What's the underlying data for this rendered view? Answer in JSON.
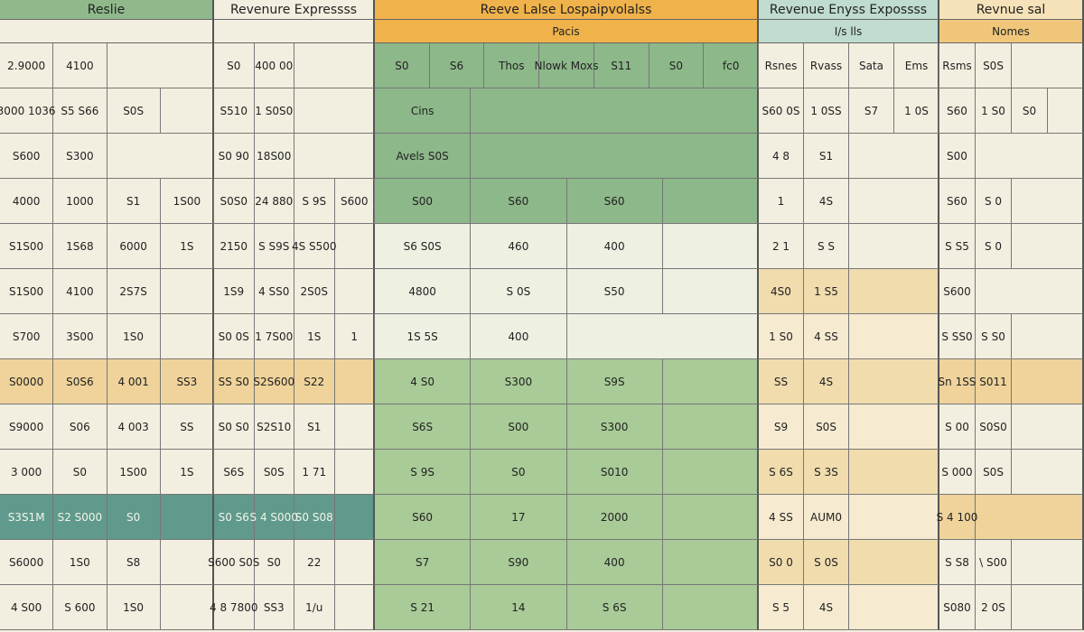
{
  "panels": [
    {
      "title": "Reslie",
      "rows": [
        [
          "2.9000",
          "4100"
        ],
        [
          "3000 1036",
          "S5 S66",
          "S0S"
        ],
        [
          "S600",
          "S300"
        ],
        [
          "4000",
          "1000",
          "S1",
          "1S00"
        ],
        [
          "S1S00",
          "1S68",
          "6000",
          "1S"
        ],
        [
          "S1S00",
          "4100",
          "2S7S"
        ],
        [
          "S700",
          "3S00",
          "1S0"
        ],
        [
          "S0000",
          "S0S6",
          "4 001",
          "SS3"
        ],
        [
          "S9000",
          "S06",
          "4 003",
          "SS"
        ],
        [
          "3 000",
          "S0",
          "1S00",
          "1S"
        ],
        [
          "S3S1M",
          "S2 S000",
          "S0"
        ],
        [
          "S6000",
          "1S0",
          "S8"
        ],
        [
          "4 S00",
          "S 600",
          "1S0"
        ]
      ]
    },
    {
      "title": "Revenure Expressss",
      "rows": [
        [
          "S0",
          "400 00"
        ],
        [
          "S510",
          "1 S0S0"
        ],
        [
          "S0 90",
          "18S00"
        ],
        [
          "S0S0",
          "24 880",
          "S 9S",
          "S600"
        ],
        [
          "2150",
          "S S9S",
          "4S S500"
        ],
        [
          "1S9",
          "4 SS0",
          "2S0S"
        ],
        [
          "S0 0S",
          "1 7S00",
          "1S",
          "1"
        ],
        [
          "SS S0",
          "S2S600",
          "S22"
        ],
        [
          "S0 S0",
          "S2S10",
          "S1"
        ],
        [
          "S6S",
          "S0S",
          "1 71"
        ],
        [
          "S0 S6",
          "S 4 S000",
          "S0 S08"
        ],
        [
          "S600 S0S",
          "S0",
          "22"
        ],
        [
          "4 8 7800",
          "SS3",
          "1/u"
        ]
      ]
    },
    {
      "title": "Reeve Lalse Lospaipvolalss",
      "subtitle": "Pacis",
      "rows": [
        [
          "S0",
          "S6",
          "Thos",
          "Nlowk Moxs",
          "S11",
          "S0",
          "fc0"
        ],
        [
          "Cins"
        ],
        [
          "Avels S0S"
        ],
        [
          "S00",
          "S60",
          "S60"
        ],
        [
          "S6 S0S",
          "460",
          "400"
        ],
        [
          "4800",
          "S 0S",
          "S50"
        ],
        [
          "1S 5S",
          "400"
        ],
        [
          "4 S0",
          "S300",
          "S9S"
        ],
        [
          "S6S",
          "S00",
          "S300"
        ],
        [
          "S 9S",
          "S0",
          "S010"
        ],
        [
          "S60",
          "17",
          "2000"
        ],
        [
          "S7",
          "S90",
          "400"
        ],
        [
          "S 21",
          "14",
          "S 6S"
        ]
      ]
    },
    {
      "title": "Revenue Enyss Expossss",
      "subtitle": "I/s lls",
      "rows": [
        [
          "Rsnes",
          "Rvass",
          "Sata",
          "Ems"
        ],
        [
          "S60 0S",
          "1 0SS",
          "S7",
          "1 0S"
        ],
        [
          "4 8",
          "S1"
        ],
        [
          "1",
          "4S"
        ],
        [
          "2 1",
          "S S"
        ],
        [
          "4S0",
          "1 S5"
        ],
        [
          "1 S0",
          "4 SS"
        ],
        [
          "SS",
          "4S"
        ],
        [
          "S9",
          "S0S"
        ],
        [
          "S 6S",
          "S 3S"
        ],
        [
          "4 SS",
          "AUM0"
        ],
        [
          "S0 0",
          "S 0S"
        ],
        [
          "S 5",
          "4S"
        ]
      ]
    },
    {
      "title": "Revnue sal",
      "subtitle": "Nomes",
      "rows": [
        [
          "Rsms",
          "S0S"
        ],
        [
          "S60",
          "1 S0",
          "S0"
        ],
        [
          "S00"
        ],
        [
          "S60",
          "S 0"
        ],
        [
          "S S5",
          "S 0"
        ],
        [
          "S600"
        ],
        [
          "S SS0",
          "S S0"
        ],
        [
          "Sn 1SS",
          "S011"
        ],
        [
          "S 00",
          "S0S0"
        ],
        [
          "S 000",
          "S0S"
        ],
        [
          "S 4 100"
        ],
        [
          "S S8",
          "\\ S00"
        ],
        [
          "S080",
          "2 0S"
        ]
      ]
    }
  ]
}
